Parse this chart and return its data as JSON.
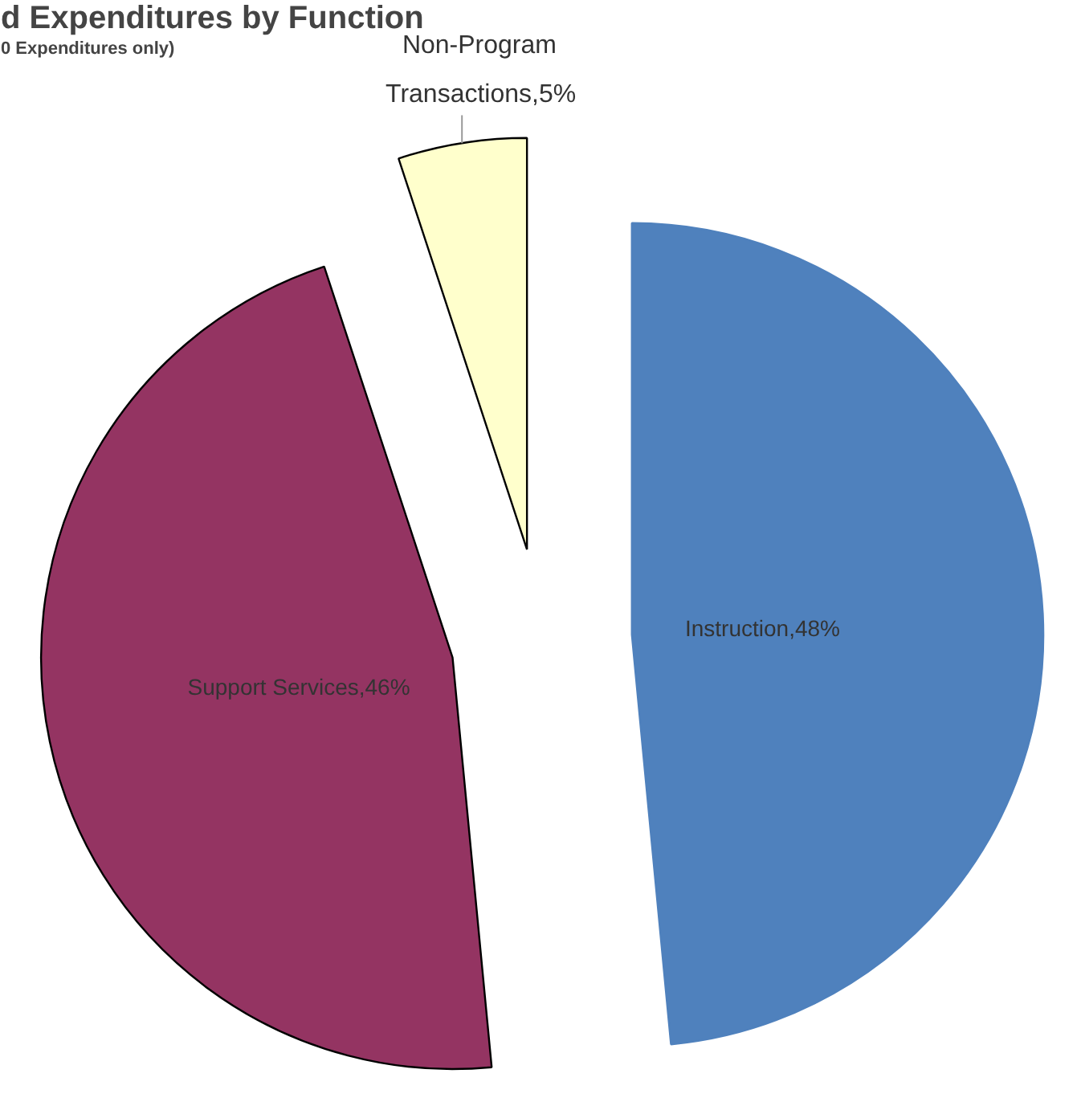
{
  "chart_data": {
    "type": "pie",
    "title": "d Expenditures by Function",
    "subtitle": "0 Expenditures only)",
    "categories": [
      "Instruction",
      "Support Services",
      "Non-Program Transactions"
    ],
    "values": [
      48,
      46,
      5
    ],
    "colors": [
      "#4f81bd",
      "#943462",
      "#ffffcc"
    ],
    "value_labels": [
      ",48%",
      ",46%",
      ",5%"
    ]
  }
}
